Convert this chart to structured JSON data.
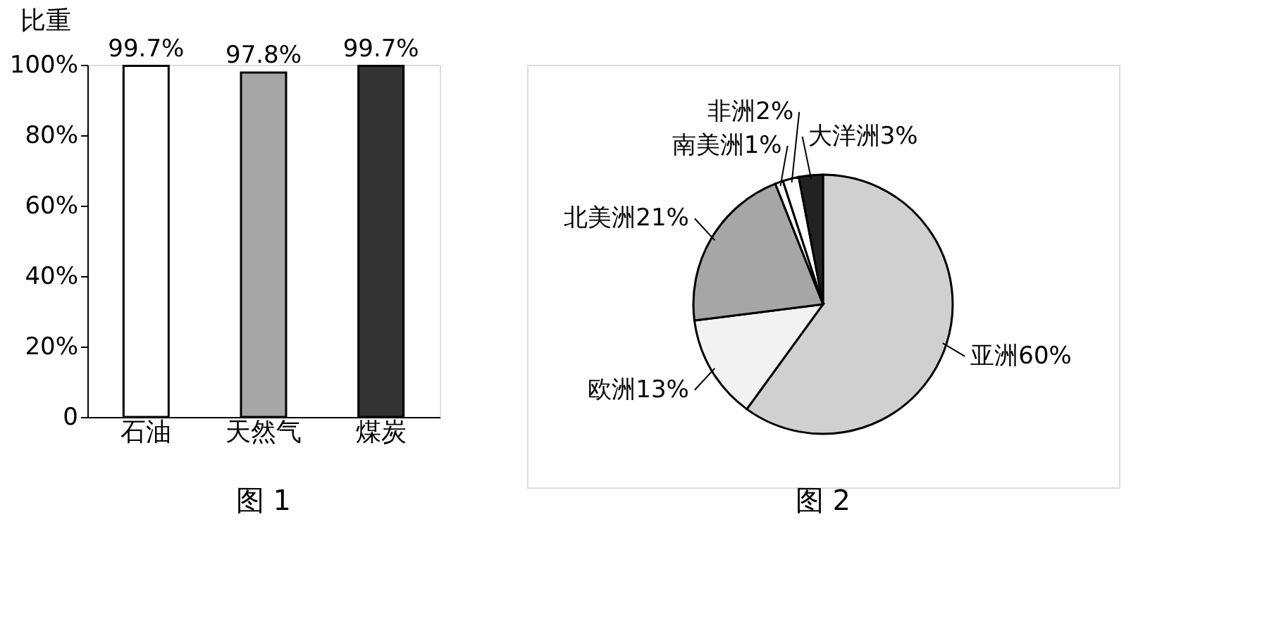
{
  "chart_data": [
    {
      "type": "bar",
      "title": "图 1",
      "ylabel": "比重",
      "categories": [
        "石油",
        "天然气",
        "煤炭"
      ],
      "values": [
        99.7,
        97.8,
        99.7
      ],
      "colors": [
        "#ffffff",
        "#a6a6a6",
        "#333333"
      ],
      "value_labels": [
        "99.7%",
        "97.8%",
        "99.7%"
      ],
      "ylim": [
        0,
        100
      ],
      "yticks": [
        0,
        {
          "value": 20,
          "label": "20%"
        },
        {
          "value": 40,
          "label": "40%"
        },
        {
          "value": 60,
          "label": "60%"
        },
        {
          "value": 80,
          "label": "80%"
        },
        {
          "value": 100,
          "label": "100%"
        }
      ],
      "grid": false,
      "legend": false
    },
    {
      "type": "pie",
      "title": "图 2",
      "categories": [
        "亚洲",
        "欧洲",
        "北美洲",
        "南美洲",
        "非洲",
        "大洋洲"
      ],
      "values": [
        60,
        13,
        21,
        1,
        2,
        3
      ],
      "value_labels": [
        "60%",
        "13%",
        "21%",
        "1%",
        "2%",
        "3%"
      ],
      "colors": [
        "#d0d0d0",
        "#f2f2f2",
        "#a6a6a6",
        "#ffffff",
        "#ffffff",
        "#222222"
      ],
      "legend": false
    }
  ]
}
